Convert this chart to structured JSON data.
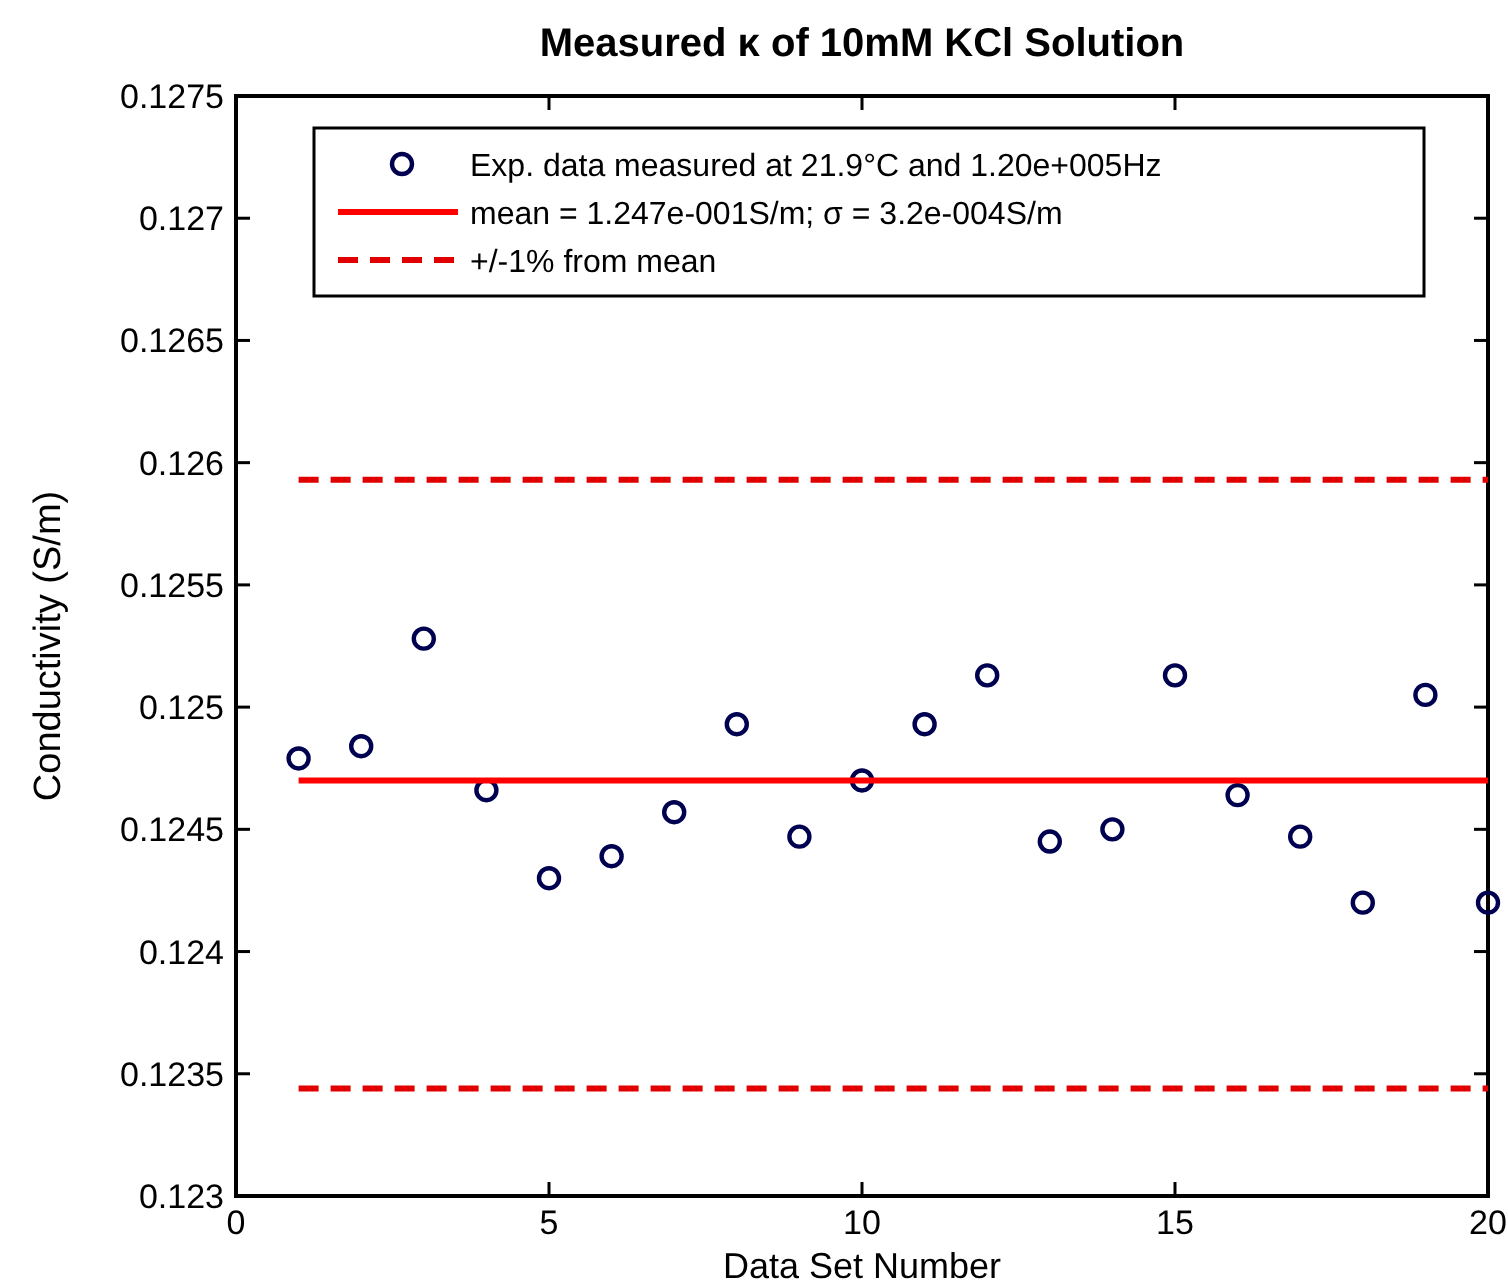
{
  "chart_data": {
    "type": "scatter",
    "title": "Measured κ of 10mM KCl Solution",
    "xlabel": "Data Set Number",
    "ylabel": "Conductivity (S/m)",
    "xlim": [
      0,
      20
    ],
    "xticks": [
      0,
      5,
      10,
      15,
      20
    ],
    "ylim": [
      0.123,
      0.1275
    ],
    "yticks": [
      0.123,
      0.1235,
      0.124,
      0.1245,
      0.125,
      0.1255,
      0.126,
      0.1265,
      0.127,
      0.1275
    ],
    "grid": false,
    "legend": "top",
    "series": [
      {
        "name": "Exp. data measured at 21.9°C and 1.20e+005Hz",
        "marker": "circle",
        "color": "#000050",
        "x": [
          1,
          2,
          3,
          4,
          5,
          6,
          7,
          8,
          9,
          10,
          11,
          12,
          13,
          14,
          15,
          16,
          17,
          18,
          19,
          20
        ],
        "values": [
          0.12479,
          0.12484,
          0.12528,
          0.12466,
          0.1243,
          0.12439,
          0.12457,
          0.12493,
          0.12447,
          0.1247,
          0.12493,
          0.12513,
          0.12445,
          0.1245,
          0.12513,
          0.12464,
          0.12447,
          0.1242,
          0.12505,
          0.1242
        ]
      },
      {
        "name": "mean = 1.247e-001S/m; σ = 3.2e-004S/m",
        "type": "line",
        "marker": "none",
        "line_style": "solid",
        "color": "#ff0000",
        "x": [
          1,
          20
        ],
        "values": [
          0.1247,
          0.1247
        ]
      },
      {
        "name": "+/-1% from mean",
        "type": "line",
        "marker": "none",
        "line_style": "dashed",
        "color": "#e00000",
        "x": [
          1,
          20
        ],
        "values": [
          0.12593,
          0.12593
        ]
      },
      {
        "type": "line",
        "marker": "none",
        "line_style": "dashed",
        "color": "#e00000",
        "x": [
          1,
          20
        ],
        "values": [
          0.12344,
          0.12344
        ]
      }
    ]
  }
}
